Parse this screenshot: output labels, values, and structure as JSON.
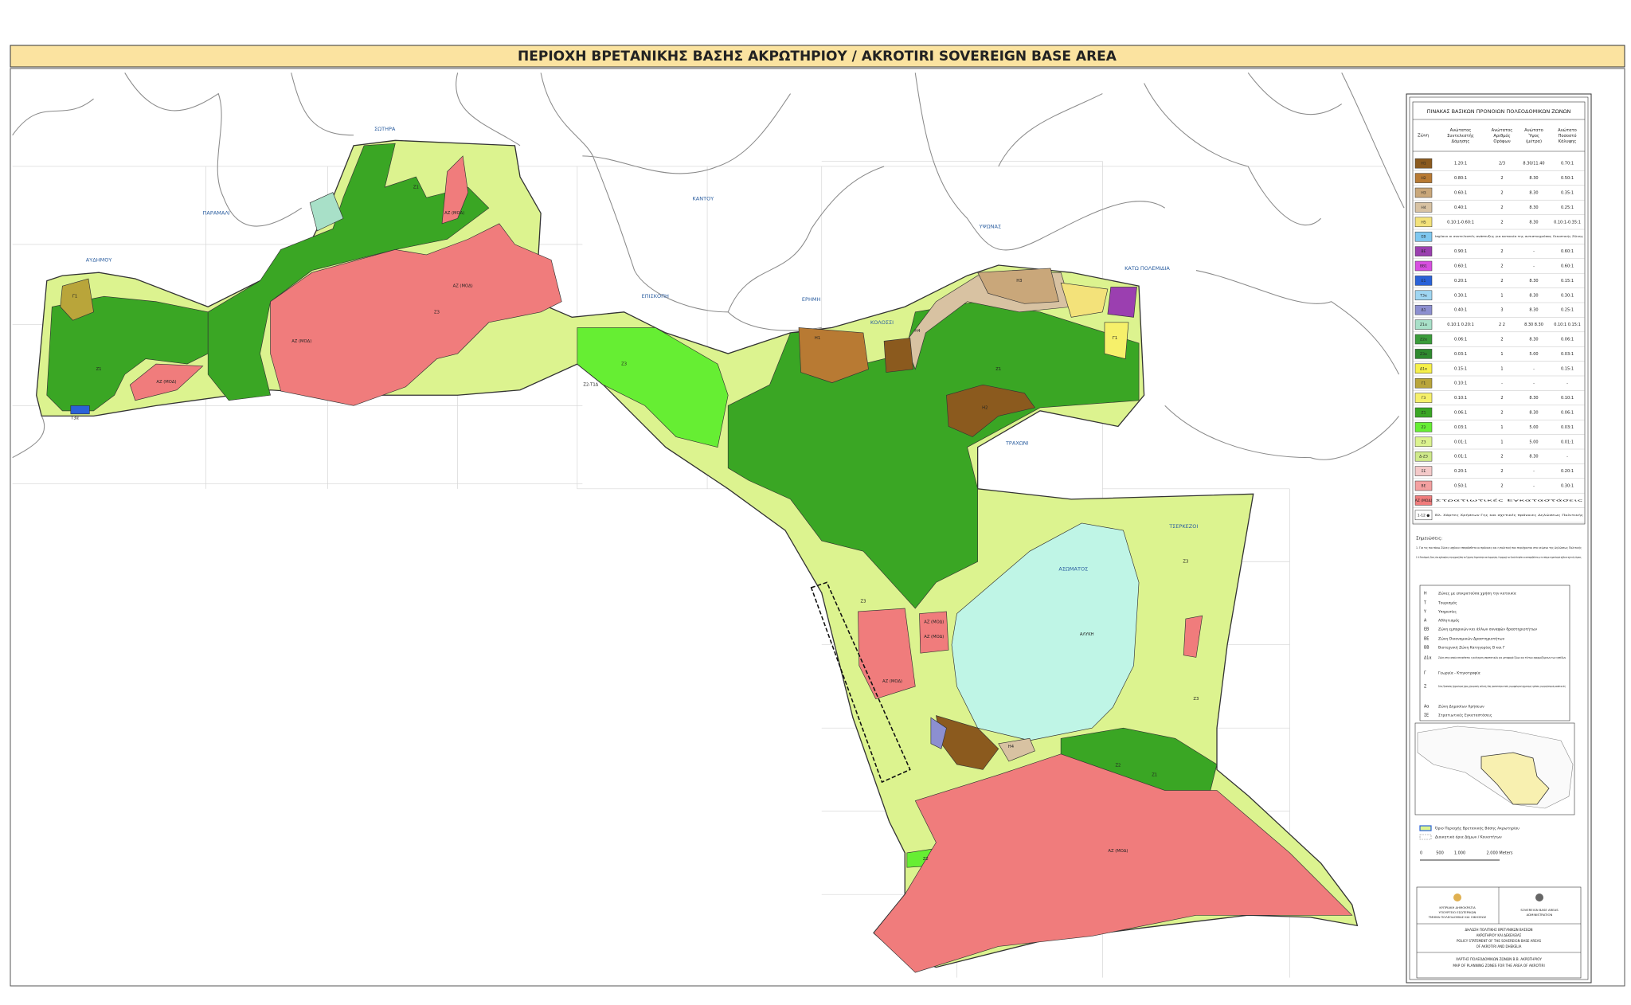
{
  "header": {
    "title": "ΠΕΡΙΟΧΗ ΒΡΕΤΑΝΙΚΗΣ ΒΑΣΗΣ ΑΚΡΩΤΗΡΙΟΥ / AKROTIRI SOVEREIGN BASE AREA"
  },
  "map": {
    "places": [
      "ΣΩΤΗΡΑ",
      "ΠΑΡΑΜΑΛΙ",
      "ΑΥΔΗΜΟΥ",
      "ΚΑΝΤΟΥ",
      "ΕΠΙΣΚΟΠΗ",
      "ΕΡΗΜΗ",
      "ΚΟΛΟΣΣΙ",
      "ΥΨΩΝΑΣ",
      "ΚΑΤΩ ΠΟΛΕΜΙΔΙΑ",
      "ΤΡΑΧΩΝΙ",
      "ΤΣΕΡΚΕΖΟΙ",
      "ΑΣΩΜΑΤΟΣ"
    ],
    "zones": [
      "ΑΖ (ΜΟΔ)",
      "ΑΖ (ΜΟΔ)",
      "ΑΖ (ΜΟΔ)",
      "ΑΖ (ΜΟΔ)",
      "ΑΖ (ΜΟΔ)",
      "ΑΖ (ΜΟΔ)",
      "ΑΖ (ΜΟΔ)",
      "ΑΖ (ΜΟΔ)",
      "Ζ1",
      "Ζ1",
      "Ζ1",
      "Ζ1",
      "Ζ3",
      "Ζ3",
      "Ζ3",
      "Ζ3",
      "Ζ3",
      "Ζ2",
      "Ζ2",
      "Γ1",
      "Γ1",
      "Η1",
      "Η2",
      "Η3",
      "Η4",
      "Η4",
      "Τ3α",
      "Ζ2-Τ1Δ",
      "ΑΛΥΚΗ"
    ]
  },
  "legend": {
    "title": "ΠΙΝΑΚΑΣ ΒΑΣΙΚΩΝ ΠΡΟΝΟΙΩΝ ΠΟΛΕΟΔΟΜΙΚΩΝ ΖΩΝΩΝ",
    "columns": [
      "Ζώνη",
      "Ανώτατος Συντελεστής Δόμησης",
      "Ανώτατος Αριθμός Ορόφων",
      "Ανώτατο Ύψος (μέτρα)",
      "Ανώτατο Ποσοστό Κάλυψης"
    ],
    "rows": [
      {
        "code": "Η1",
        "color": "#8b5a1e",
        "cells": [
          "1.20:1",
          "2/3",
          "8.30/11.40",
          "0.70:1"
        ]
      },
      {
        "code": "Η2",
        "color": "#b87a33",
        "cells": [
          "0.80:1",
          "2",
          "8.30",
          "0.50:1"
        ]
      },
      {
        "code": "Η3",
        "color": "#c9a77a",
        "cells": [
          "0.60:1",
          "2",
          "8.30",
          "0.35:1"
        ]
      },
      {
        "code": "Η4",
        "color": "#d8c2a2",
        "cells": [
          "0.40:1",
          "2",
          "8.30",
          "0.25:1"
        ]
      },
      {
        "code": "Η5",
        "color": "#f3e27a",
        "cells": [
          "0.10:1-0.60:1",
          "2",
          "8.30",
          "0.10:1-0.35:1"
        ]
      },
      {
        "code": "ΕΒ",
        "color": "#7fc8f0",
        "cells": [
          "Ισχύουν οι συντελεστές ανάπτυξης για κατοικία της αντιστοιχούσας Οικιστικής Ζώνης"
        ]
      },
      {
        "code": "ΒΕ",
        "color": "#9b3fb0",
        "cells": [
          "0.90:1",
          "2",
          "-",
          "0.60:1"
        ]
      },
      {
        "code": "ΒΒ1",
        "color": "#d74ee0",
        "cells": [
          "0.60:1",
          "2",
          "-",
          "0.60:1"
        ]
      },
      {
        "code": "Ε1",
        "color": "#2a62d8",
        "cells": [
          "0.20:1",
          "2",
          "8.30",
          "0.15:1"
        ]
      },
      {
        "code": "Τ3α",
        "color": "#9fd6f2",
        "cells": [
          "0.30:1",
          "1",
          "8.30",
          "0.30:1"
        ]
      },
      {
        "code": "Δ1",
        "color": "#8c8fd0",
        "cells": [
          "0.40:1",
          "3",
          "8.30",
          "0.25:1"
        ]
      },
      {
        "code": "Ζ1α",
        "color": "#a8e0c8",
        "cells": [
          "0.10:1 0.20:1",
          "2 2",
          "8.30 8.30",
          "0.10:1 0.15:1"
        ]
      },
      {
        "code": "Ζ2α",
        "color": "#3a9c3a",
        "cells": [
          "0.06:1",
          "2",
          "8.30",
          "0.06:1"
        ]
      },
      {
        "code": "Ζ3α",
        "color": "#2f8a2f",
        "cells": [
          "0.03:1",
          "1",
          "5.00",
          "0.03:1"
        ]
      },
      {
        "code": "Δ1α",
        "color": "#f6f04a",
        "cells": [
          "0.15:1",
          "1",
          "-",
          "0.15:1"
        ]
      },
      {
        "code": "Γ1",
        "color": "#b9a53a",
        "cells": [
          "0.10:1",
          "-",
          "-",
          "-"
        ]
      },
      {
        "code": "Γ3",
        "color": "#f6f06a",
        "cells": [
          "0.10:1",
          "2",
          "8.30",
          "0.10:1"
        ]
      },
      {
        "code": "Ζ1",
        "color": "#3aa624",
        "cells": [
          "0.06:1",
          "2",
          "8.30",
          "0.06:1"
        ]
      },
      {
        "code": "Ζ2",
        "color": "#66ee33",
        "cells": [
          "0.03:1",
          "1",
          "5.00",
          "0.03:1"
        ]
      },
      {
        "code": "Ζ3",
        "color": "#dcf38f",
        "cells": [
          "0.01:1",
          "1",
          "5.00",
          "0.01:1"
        ]
      },
      {
        "code": "Δ-Ζ3",
        "color": "#cfe98a",
        "cells": [
          "0.01:1",
          "2",
          "8.30",
          "-"
        ]
      },
      {
        "code": "ΣΕ",
        "color": "#f4c9c9",
        "cells": [
          "0.20:1",
          "2",
          "-",
          "0.20:1"
        ]
      },
      {
        "code": "ΒΕ",
        "color": "#f4a0a0",
        "cells": [
          "0.50:1",
          "2",
          "-",
          "0.30:1"
        ]
      },
      {
        "code": "ΑΖ (ΜΟΔ)",
        "color": "#f07c7c",
        "cells": [
          "Στρατιωτικές Εγκαταστάσεις"
        ]
      },
      {
        "code": "1-12 ●",
        "color": "#ffffff",
        "cells": [
          "Βλ. Χάρτες Χρήσεων Γης και σχετικές πρόνοιες Δηλώσεως Πολιτικής"
        ]
      }
    ],
    "notes_title": "Σημειώσεις:",
    "notes": [
      "1. Για τις πιο πάνω Ζώνες ισχύουν επιπρόσθετα οι πρόνοιες και η πολιτική που περιέχονται στο κείμενο της Δηλώσεως Πολιτικής",
      "2. Οι Πολεοδομικές Ζώνες είναι σχεδιασμένες στην ψηφιακή βάση του Τμήματος Κτηματολογίου και Χωρομετρίας. Η εφαρμογή των Ζωνών θα πρέπει να αντιπαραβάλλεται με τα επίσημα κτηματολογικά σχέδια σε σχετικές κλίμακες."
    ],
    "key": [
      [
        "Η",
        "Ζώνες με επικρατούσα χρήση την κατοικία"
      ],
      [
        "Τ",
        "Τουρισμός"
      ],
      [
        "Υ",
        "Υπηρεσίες"
      ],
      [
        "Α",
        "Αθλητισμός"
      ],
      [
        "ΕΒ",
        "Ζώνη εμπορικών και άλλων συναφών δραστηριοτήτων"
      ],
      [
        "ΒΕ",
        "Ζώνη Οικονομικών Δραστηριοτήτων"
      ],
      [
        "ΒΒ",
        "Βιοτεχνική Ζώνη Κατηγορίας Β και Γ"
      ],
      [
        "Δ1α",
        "Ζώνη στην οποία επιτρέπεται η ανέγερση υποστατικών για μεταφορά ζώων και τέντων εφαρμοζόμενων των γηπέδων"
      ],
      [
        "Γ",
        "Γεωργία - Κτηνοτροφία"
      ],
      [
        "Ζ",
        "Ζώνες Προστασίας (Αρχαιολογικοί χώροι, χώροι φυσικής καλλονής, δάση, προστατευόμενα τοπία, γεωμορφολογικοί σχηματισμοί, υγρότοποι, γεωργικά/ιστορικά μονοπάτια κλπ.)"
      ],
      [
        "Αα",
        "Ζώνη Δημοσίων Χρήσεων"
      ],
      [
        "ΣΕ",
        "Στρατιωτικές Εγκαταστάσεις"
      ]
    ],
    "boundaries": [
      "Όριο Περιοχής Βρετανικής Βάσης Ακρωτηρίου",
      "Διοικητικά όρια Δήμων / Κοινοτήτων"
    ],
    "scale": [
      "0",
      "500",
      "1.000",
      "2.000 Meters"
    ]
  },
  "title_block": {
    "left": [
      "ΚΥΠΡΙΑΚΗ ΔΗΜΟΚΡΑΤΙΑ",
      "ΥΠΟΥΡΓΕΙΟ ΕΣΩΤΕΡΙΚΩΝ",
      "ΤΜΗΜΑ ΠΟΛΕΟΔΟΜΙΑΣ ΚΑΙ ΟΙΚΗΣΕΩΣ"
    ],
    "right": [
      "SOVEREIGN BASE AREAS",
      "ADMINISTRATION"
    ],
    "statement": [
      "ΔΗΛΩΣΗ ΠΟΛΙΤΙΚΗΣ ΒΡΕΤΑΝΙΚΩΝ ΒΑΣΕΩΝ",
      "ΑΚΡΩΤΗΡΙΟΥ ΚΑΙ ΔΕΚΕΛΕΙΑΣ",
      "POLICY STATEMENT OF THE SOVEREIGN BASE AREAS",
      "OF AKROTIRI AND DHEKELIA"
    ],
    "map_title": [
      "ΧΑΡΤΗΣ ΠΟΛΕΟΔΟΜΙΚΩΝ ΖΩΝΩΝ Β.Β. ΑΚΡΩΤΗΡΙΟΥ",
      "MAP OF PLANNING ZONES FOR THE AREA OF AKROTIRI"
    ]
  }
}
